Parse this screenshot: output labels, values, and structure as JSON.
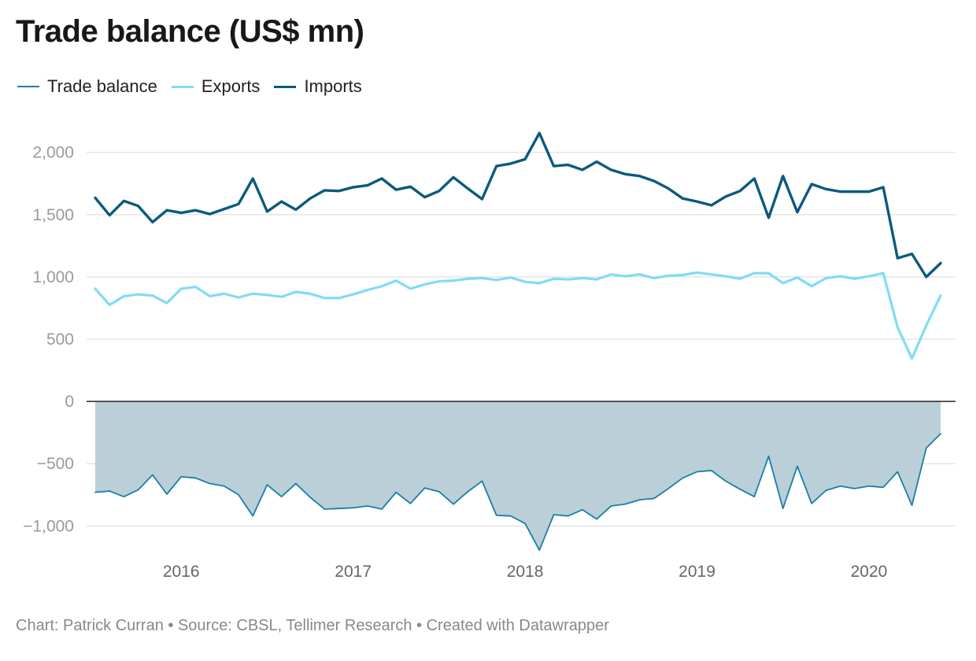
{
  "chart_data": {
    "type": "line",
    "title": "Trade balance (US$ mn)",
    "footer": "Chart: Patrick Curran • Source: CBSL, Tellimer Research • Created with Datawrapper",
    "ylim": [
      -1200,
      2200
    ],
    "y_ticks": [
      {
        "value": 2000,
        "label": "2,000"
      },
      {
        "value": 1500,
        "label": "1,500"
      },
      {
        "value": 1000,
        "label": "1,000"
      },
      {
        "value": 500,
        "label": "500"
      },
      {
        "value": 0,
        "label": "0"
      },
      {
        "value": -500,
        "label": "−500"
      },
      {
        "value": -1000,
        "label": "−1,000"
      }
    ],
    "x_start": "2015-07",
    "x_end": "2020-06",
    "x_ticks": [
      {
        "label": "2016",
        "date": "2016-01"
      },
      {
        "label": "2017",
        "date": "2017-01"
      },
      {
        "label": "2018",
        "date": "2018-01"
      },
      {
        "label": "2019",
        "date": "2019-01"
      },
      {
        "label": "2020",
        "date": "2020-01"
      }
    ],
    "legend_position": "top-left",
    "grid": true,
    "series": [
      {
        "name": "Trade balance",
        "color": "#1a7fa6",
        "fill": "#bacfd8",
        "values": [
          -730,
          -720,
          -765,
          -710,
          -590,
          -745,
          -605,
          -615,
          -660,
          -680,
          -750,
          -920,
          -670,
          -765,
          -660,
          -770,
          -865,
          -860,
          -855,
          -840,
          -865,
          -730,
          -820,
          -695,
          -725,
          -825,
          -725,
          -640,
          -915,
          -920,
          -980,
          -1195,
          -910,
          -920,
          -870,
          -945,
          -840,
          -825,
          -790,
          -780,
          -700,
          -615,
          -565,
          -555,
          -640,
          -705,
          -765,
          -440,
          -860,
          -520,
          -820,
          -715,
          -680,
          -700,
          -680,
          -690,
          -565,
          -835,
          -375,
          -260
        ]
      },
      {
        "name": "Exports",
        "color": "#7fdcf6",
        "values": [
          905,
          775,
          845,
          860,
          850,
          790,
          905,
          920,
          845,
          865,
          835,
          865,
          855,
          840,
          880,
          865,
          830,
          830,
          860,
          895,
          925,
          970,
          905,
          940,
          965,
          970,
          985,
          990,
          975,
          995,
          960,
          950,
          985,
          980,
          990,
          980,
          1020,
          1005,
          1020,
          990,
          1010,
          1015,
          1035,
          1020,
          1005,
          985,
          1030,
          1030,
          950,
          995,
          925,
          990,
          1005,
          985,
          1005,
          1030,
          595,
          345,
          610,
          850
        ]
      },
      {
        "name": "Imports",
        "color": "#0b5a7e",
        "values": [
          1635,
          1495,
          1610,
          1570,
          1440,
          1535,
          1515,
          1535,
          1505,
          1545,
          1585,
          1790,
          1525,
          1605,
          1540,
          1630,
          1695,
          1690,
          1720,
          1735,
          1790,
          1700,
          1725,
          1640,
          1690,
          1800,
          1710,
          1625,
          1890,
          1910,
          1945,
          2155,
          1890,
          1900,
          1860,
          1925,
          1860,
          1825,
          1810,
          1770,
          1710,
          1630,
          1605,
          1575,
          1645,
          1690,
          1790,
          1475,
          1810,
          1520,
          1745,
          1705,
          1685,
          1685,
          1685,
          1720,
          1150,
          1185,
          1000,
          1110
        ]
      }
    ]
  }
}
